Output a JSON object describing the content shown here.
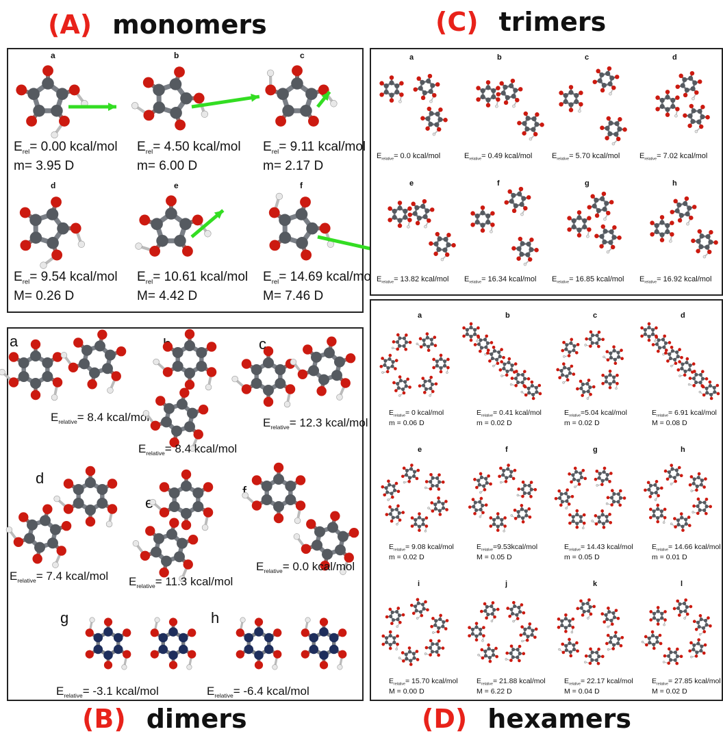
{
  "titles": {
    "A": {
      "tag": "(A)",
      "name": "monomers"
    },
    "B": {
      "tag": "(B)",
      "name": "dimers"
    },
    "C": {
      "tag": "(C)",
      "name": "trimers"
    },
    "D": {
      "tag": "(D)",
      "name": "hexamers"
    }
  },
  "monomers": [
    {
      "label": "a",
      "e_pre": "E",
      "e_sub": "rel",
      "e_val": "= 0.00 kcal/mol",
      "dipole": "m= 3.95 D"
    },
    {
      "label": "b",
      "e_pre": "E",
      "e_sub": "rel",
      "e_val": "= 4.50 kcal/mol",
      "dipole": "m= 6.00 D"
    },
    {
      "label": "c",
      "e_pre": "E",
      "e_sub": "rel",
      "e_val": "= 9.11 kcal/mol",
      "dipole": "m= 2.17 D"
    },
    {
      "label": "d",
      "e_pre": "E",
      "e_sub": "rel",
      "e_val": "= 9.54 kcal/mol",
      "dipole": "M= 0.26 D"
    },
    {
      "label": "e",
      "e_pre": "E",
      "e_sub": "rel",
      "e_val": "= 10.61 kcal/mol",
      "dipole": "M= 4.42 D"
    },
    {
      "label": "f",
      "e_pre": "E",
      "e_sub": "rel",
      "e_val": "= 14.69 kcal/mol",
      "dipole": "M= 7.46 D"
    }
  ],
  "dimers": [
    {
      "label": "a",
      "e_pre": "E",
      "e_sub": "relative",
      "e_val": "= 8.4 kcal/mol"
    },
    {
      "label": "b",
      "e_pre": "E",
      "e_sub": "relative",
      "e_val": "= 8.4 kcal/mol"
    },
    {
      "label": "c",
      "e_pre": "E",
      "e_sub": "relative",
      "e_val": "= 12.3 kcal/mol"
    },
    {
      "label": "d",
      "e_pre": "E",
      "e_sub": "relative",
      "e_val": "= 7.4 kcal/mol"
    },
    {
      "label": "e",
      "e_pre": "E",
      "e_sub": "relative",
      "e_val": "= 11.3 kcal/mol"
    },
    {
      "label": "f",
      "e_pre": "E",
      "e_sub": "relative",
      "e_val": "= 0.0 kcal/mol"
    },
    {
      "label": "g",
      "e_pre": "E",
      "e_sub": "relative",
      "e_val": "= -3.1 kcal/mol"
    },
    {
      "label": "h",
      "e_pre": "E",
      "e_sub": "relative",
      "e_val": "= -6.4 kcal/mol"
    }
  ],
  "trimers": [
    {
      "label": "a",
      "e_pre": "E",
      "e_sub": "relative",
      "e_val": "= 0.0 kcal/mol"
    },
    {
      "label": "b",
      "e_pre": "E",
      "e_sub": "relative",
      "e_val": "= 0.49 kcal/mol"
    },
    {
      "label": "c",
      "e_pre": "E",
      "e_sub": "relative",
      "e_val": "= 5.70 kcal/mol"
    },
    {
      "label": "d",
      "e_pre": "E",
      "e_sub": "relative",
      "e_val": "= 7.02 kcal/mol"
    },
    {
      "label": "e",
      "e_pre": "E",
      "e_sub": "relative",
      "e_val": "= 13.82 kcal/mol"
    },
    {
      "label": "f",
      "e_pre": "E",
      "e_sub": "relative",
      "e_val": "= 16.34 kcal/mol"
    },
    {
      "label": "g",
      "e_pre": "E",
      "e_sub": "relative",
      "e_val": "= 16.85 kcal/mol"
    },
    {
      "label": "h",
      "e_pre": "E",
      "e_sub": "relative",
      "e_val": "= 16.92 kcal/mol"
    }
  ],
  "hexamers": [
    {
      "label": "a",
      "e_pre": "E",
      "e_sub": "relative",
      "e_val": "= 0 kcal/mol",
      "dipole": "m = 0.06 D"
    },
    {
      "label": "b",
      "e_pre": "E",
      "e_sub": "relative",
      "e_val": "= 0.41 kcal/mol",
      "dipole": "m = 0.02 D"
    },
    {
      "label": "c",
      "e_pre": "E",
      "e_sub": "relative",
      "e_val": "=5.04 kcal/mol",
      "dipole": "m = 0.02 D"
    },
    {
      "label": "d",
      "e_pre": "E",
      "e_sub": "relative",
      "e_val": "= 6.91 kcal/mol",
      "dipole": "M = 0.08 D"
    },
    {
      "label": "e",
      "e_pre": "E",
      "e_sub": "relative",
      "e_val": "= 9.08 kcal/mol",
      "dipole": "m = 0.02 D"
    },
    {
      "label": "f",
      "e_pre": "E",
      "e_sub": "relative",
      "e_val": "=9.53kcal/mol",
      "dipole": "M = 0.05 D"
    },
    {
      "label": "g",
      "e_pre": "E",
      "e_sub": "relative",
      "e_val": "= 14.43 kcal/mol",
      "dipole": "m = 0.05 D"
    },
    {
      "label": "h",
      "e_pre": "E",
      "e_sub": "relative",
      "e_val": "= 14.66 kcal/mol",
      "dipole": "m = 0.01 D"
    },
    {
      "label": "i",
      "e_pre": "E",
      "e_sub": "relative",
      "e_val": "= 15.70 kcal/mol",
      "dipole": "M = 0.00 D"
    },
    {
      "label": "j",
      "e_pre": "E",
      "e_sub": "relative",
      "e_val": "= 21.88 kcal/mol",
      "dipole": "M = 6.22 D"
    },
    {
      "label": "k",
      "e_pre": "E",
      "e_sub": "relative",
      "e_val": "= 22.17 kcal/mol",
      "dipole": "M = 0.04 D"
    },
    {
      "label": "l",
      "e_pre": "E",
      "e_sub": "relative",
      "e_val": "= 27.85 kcal/mol",
      "dipole": "M = 0.02 D"
    }
  ],
  "colors": {
    "title_tag": "#e8221a",
    "carbon": "#555a60",
    "oxygen": "#cc1a10",
    "hydrogen": "#e8e8e8",
    "carbon_dark": "#1e2e5c",
    "arrow": "#33dd22"
  }
}
